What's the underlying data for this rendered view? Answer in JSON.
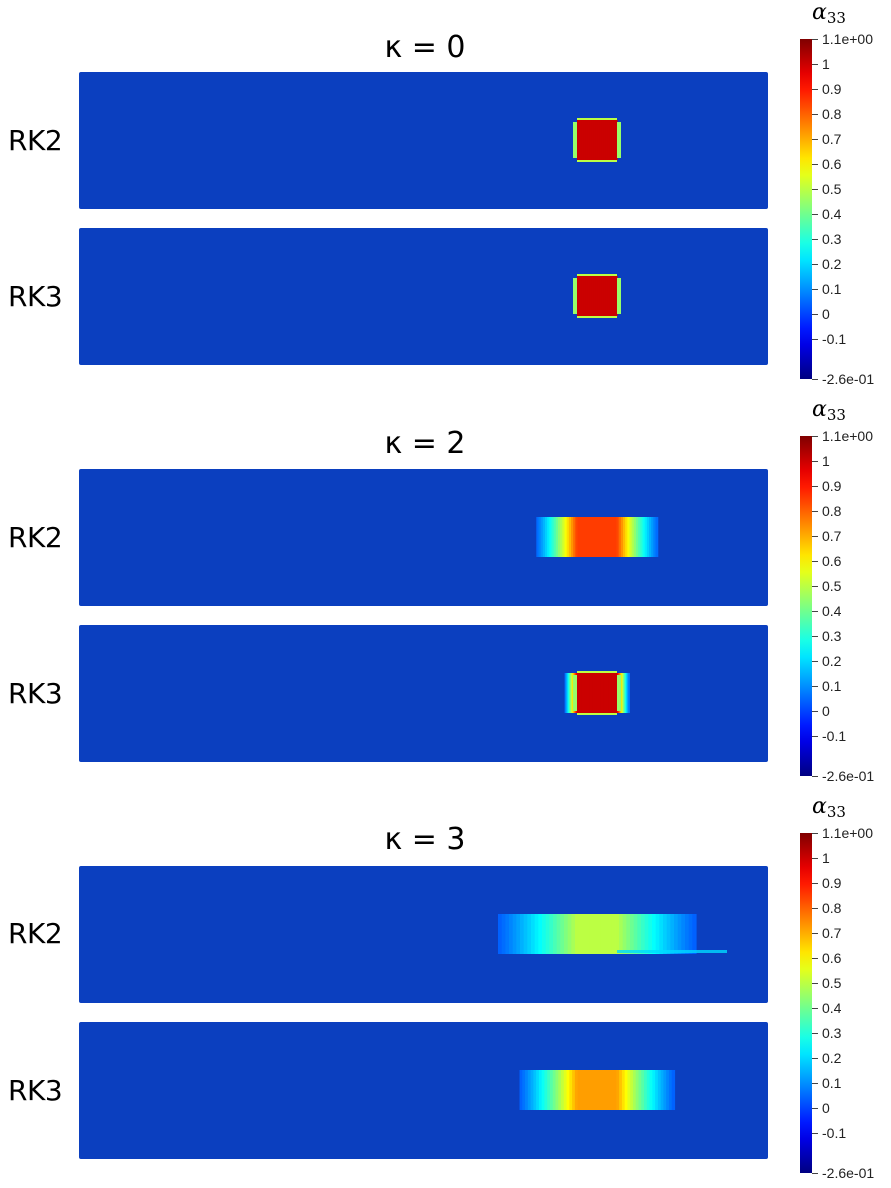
{
  "groups": [
    {
      "title": "κ = 0",
      "rows": [
        {
          "label": "RK2",
          "blob": {
            "peak": 1.0,
            "spread": 0.0,
            "smear": 0.0,
            "tail": 0.0
          }
        },
        {
          "label": "RK3",
          "blob": {
            "peak": 1.0,
            "spread": 0.0,
            "smear": 0.0,
            "tail": 0.0
          }
        }
      ]
    },
    {
      "title": "κ = 2",
      "rows": [
        {
          "label": "RK2",
          "blob": {
            "peak": 0.85,
            "spread": 0.5,
            "smear": 0.5,
            "tail": 0.0
          }
        },
        {
          "label": "RK3",
          "blob": {
            "peak": 1.0,
            "spread": 0.15,
            "smear": 0.15,
            "tail": 0.0
          }
        }
      ]
    },
    {
      "title": "κ = 3",
      "rows": [
        {
          "label": "RK2",
          "blob": {
            "peak": 0.5,
            "spread": 1.0,
            "smear": 1.0,
            "tail": 1.0
          }
        },
        {
          "label": "RK3",
          "blob": {
            "peak": 0.72,
            "spread": 0.7,
            "smear": 0.7,
            "tail": 0.0
          }
        }
      ]
    }
  ],
  "colorbar": {
    "title": "α",
    "subscript": "33",
    "min_label": "-2.6e-01",
    "max_label": "1.1e+00",
    "range": [
      -0.26,
      1.1
    ],
    "ticks": [
      "1",
      "0.9",
      "0.8",
      "0.7",
      "0.6",
      "0.5",
      "0.4",
      "0.3",
      "0.2",
      "0.1",
      "0",
      "-0.1"
    ],
    "tick_values": [
      1,
      0.9,
      0.8,
      0.7,
      0.6,
      0.5,
      0.4,
      0.3,
      0.2,
      0.1,
      0,
      -0.1
    ]
  },
  "background_value": 0.0,
  "colors": {
    "background_field": "#0b3fbf"
  }
}
